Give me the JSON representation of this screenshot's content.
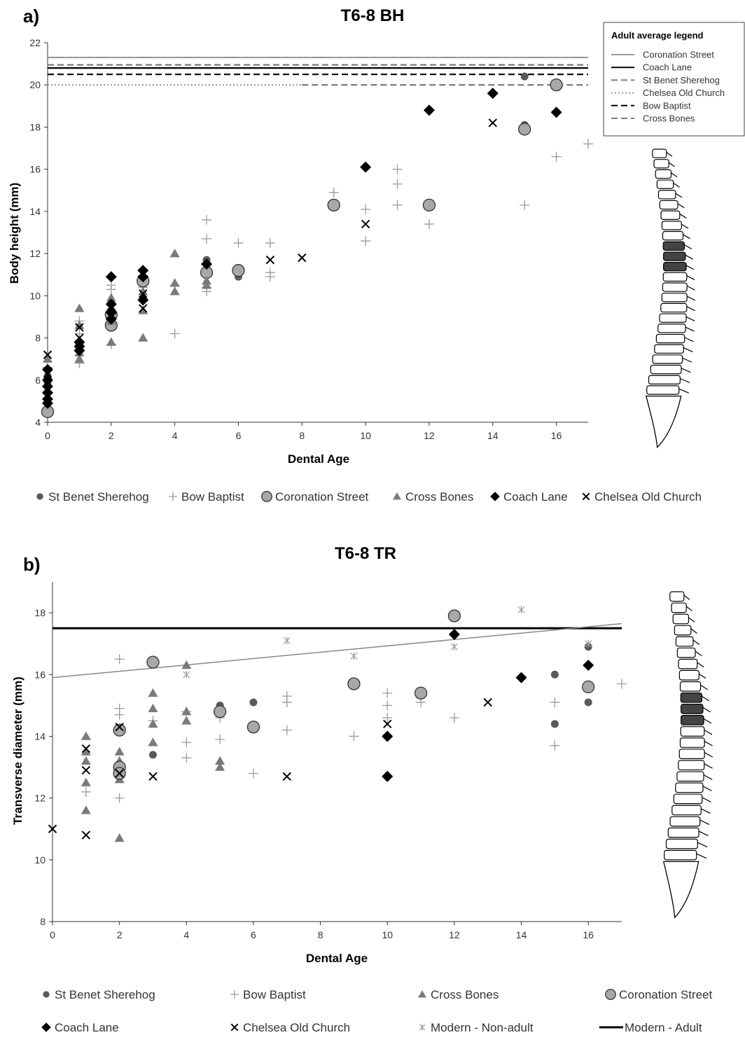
{
  "chart_data": [
    {
      "panel_label": "a)",
      "type": "scatter",
      "title": "T6-8 BH",
      "xlabel": "Dental Age",
      "ylabel": "Body height (mm)",
      "xlim": [
        0,
        17
      ],
      "ylim": [
        4,
        22
      ],
      "xticks": [
        0,
        2,
        4,
        6,
        8,
        10,
        12,
        14,
        16
      ],
      "yticks": [
        4,
        6,
        8,
        10,
        12,
        14,
        16,
        18,
        20,
        22
      ],
      "legend_position": "bottom",
      "series": [
        {
          "name": "St Benet Sherehog",
          "marker": "dot",
          "color": "#5a5a5a",
          "points": [
            [
              0,
              6.2
            ],
            [
              0,
              5.9
            ],
            [
              5,
              11.7
            ],
            [
              6,
              10.9
            ],
            [
              15,
              20.4
            ],
            [
              15,
              18.1
            ]
          ]
        },
        {
          "name": "Bow Baptist",
          "marker": "plus",
          "color": "#9a9a9a",
          "points": [
            [
              0,
              6.6
            ],
            [
              1,
              8.8
            ],
            [
              1,
              8.2
            ],
            [
              1,
              6.8
            ],
            [
              2,
              10.5
            ],
            [
              2,
              10.3
            ],
            [
              2,
              9.1
            ],
            [
              2,
              7.7
            ],
            [
              3,
              10.4
            ],
            [
              4,
              10.5
            ],
            [
              4,
              8.2
            ],
            [
              5,
              13.6
            ],
            [
              5,
              12.7
            ],
            [
              5,
              10.4
            ],
            [
              5,
              10.2
            ],
            [
              6,
              12.5
            ],
            [
              7,
              12.5
            ],
            [
              7,
              11.1
            ],
            [
              7,
              10.9
            ],
            [
              9,
              14.9
            ],
            [
              10,
              14.1
            ],
            [
              10,
              12.6
            ],
            [
              11,
              16.0
            ],
            [
              11,
              15.3
            ],
            [
              11,
              14.3
            ],
            [
              12,
              13.4
            ],
            [
              15,
              14.3
            ],
            [
              16,
              16.6
            ],
            [
              17,
              17.2
            ]
          ]
        },
        {
          "name": "Coronation Street",
          "marker": "circle",
          "color": "#a8a8a8",
          "points": [
            [
              0,
              4.5
            ],
            [
              2,
              8.6
            ],
            [
              2,
              9.1
            ],
            [
              3,
              10.7
            ],
            [
              5,
              11.1
            ],
            [
              6,
              11.2
            ],
            [
              9,
              14.3
            ],
            [
              12,
              14.3
            ],
            [
              15,
              17.9
            ],
            [
              16,
              20.0
            ]
          ]
        },
        {
          "name": "Cross Bones",
          "marker": "triangle",
          "color": "#7a7a7a",
          "points": [
            [
              0,
              7.0
            ],
            [
              1,
              9.4
            ],
            [
              1,
              8.6
            ],
            [
              1,
              7.3
            ],
            [
              1,
              7.0
            ],
            [
              2,
              9.9
            ],
            [
              2,
              8.8
            ],
            [
              2,
              7.8
            ],
            [
              3,
              10.2
            ],
            [
              3,
              9.3
            ],
            [
              3,
              8.0
            ],
            [
              4,
              12.0
            ],
            [
              4,
              10.6
            ],
            [
              4,
              10.2
            ],
            [
              5,
              10.7
            ],
            [
              5,
              10.5
            ]
          ]
        },
        {
          "name": "Coach Lane",
          "marker": "diamond",
          "color": "#000000",
          "points": [
            [
              0,
              6.5
            ],
            [
              0,
              6.0
            ],
            [
              0,
              5.7
            ],
            [
              0,
              5.4
            ],
            [
              0,
              5.1
            ],
            [
              0,
              4.9
            ],
            [
              1,
              7.8
            ],
            [
              1,
              7.6
            ],
            [
              1,
              7.4
            ],
            [
              2,
              10.9
            ],
            [
              2,
              9.6
            ],
            [
              2,
              9.2
            ],
            [
              2,
              8.9
            ],
            [
              3,
              11.2
            ],
            [
              3,
              10.9
            ],
            [
              3,
              9.8
            ],
            [
              5,
              11.5
            ],
            [
              10,
              16.1
            ],
            [
              12,
              18.8
            ],
            [
              14,
              19.6
            ],
            [
              16,
              18.7
            ]
          ]
        },
        {
          "name": "Chelsea Old Church",
          "marker": "x",
          "color": "#000000",
          "points": [
            [
              0,
              7.2
            ],
            [
              0,
              6.3
            ],
            [
              0,
              5.3
            ],
            [
              1,
              8.5
            ],
            [
              1,
              8.0
            ],
            [
              1,
              7.7
            ],
            [
              2,
              9.5
            ],
            [
              3,
              10.1
            ],
            [
              3,
              9.4
            ],
            [
              7,
              11.7
            ],
            [
              8,
              11.8
            ],
            [
              10,
              13.4
            ],
            [
              14,
              18.2
            ]
          ]
        }
      ],
      "reference_lines": [
        {
          "name": "Coronation Street",
          "y": 21.3,
          "style": "solid",
          "color": "#999999",
          "x_from": 0,
          "x_to": 17
        },
        {
          "name": "Coach Lane",
          "y": 20.8,
          "style": "solid",
          "color": "#000000",
          "x_from": 0,
          "x_to": 17
        },
        {
          "name": "St Benet Sherehog",
          "y": 20.95,
          "style": "dashed",
          "color": "#7a7a7a",
          "x_from": 0,
          "x_to": 17
        },
        {
          "name": "Chelsea Old Church",
          "y": 20.0,
          "style": "dotted",
          "color": "#9a9a9a",
          "x_from": 0,
          "x_to": 8
        },
        {
          "name": "Bow Baptist",
          "y": 20.5,
          "style": "dashed",
          "color": "#000000",
          "x_from": 0,
          "x_to": 17
        },
        {
          "name": "Cross Bones",
          "y": 20.0,
          "style": "dashed",
          "color": "#7a7a7a",
          "x_from": 8,
          "x_to": 17
        }
      ],
      "adult_legend": {
        "title": "Adult average legend",
        "entries": [
          "Coronation Street",
          "Coach Lane",
          "St Benet Sherehog",
          "Chelsea Old Church",
          "Bow Baptist",
          "Cross Bones"
        ]
      }
    },
    {
      "panel_label": "b)",
      "type": "scatter",
      "title": "T6-8 TR",
      "xlabel": "Dental Age",
      "ylabel": "Transverse diameter (mm)",
      "xlim": [
        0,
        17
      ],
      "ylim": [
        8,
        19
      ],
      "xticks": [
        0,
        2,
        4,
        6,
        8,
        10,
        12,
        14,
        16
      ],
      "yticks": [
        8,
        10,
        12,
        14,
        16,
        18
      ],
      "legend_position": "bottom",
      "series": [
        {
          "name": "St Benet Sherehog",
          "marker": "dot",
          "color": "#5a5a5a",
          "points": [
            [
              3,
              13.4
            ],
            [
              5,
              15.0
            ],
            [
              6,
              15.1
            ],
            [
              15,
              16.0
            ],
            [
              15,
              14.4
            ],
            [
              16,
              16.9
            ],
            [
              16,
              15.1
            ]
          ]
        },
        {
          "name": "Bow Baptist",
          "marker": "plus",
          "color": "#9a9a9a",
          "points": [
            [
              1,
              12.2
            ],
            [
              2,
              16.5
            ],
            [
              2,
              14.9
            ],
            [
              2,
              14.7
            ],
            [
              2,
              12.0
            ],
            [
              3,
              14.5
            ],
            [
              4,
              14.8
            ],
            [
              4,
              13.8
            ],
            [
              4,
              13.3
            ],
            [
              5,
              14.6
            ],
            [
              5,
              13.9
            ],
            [
              6,
              12.8
            ],
            [
              7,
              15.3
            ],
            [
              7,
              15.1
            ],
            [
              7,
              14.2
            ],
            [
              9,
              14.0
            ],
            [
              10,
              15.4
            ],
            [
              10,
              15.0
            ],
            [
              10,
              14.6
            ],
            [
              11,
              15.1
            ],
            [
              12,
              14.6
            ],
            [
              15,
              15.1
            ],
            [
              15,
              13.7
            ],
            [
              17,
              15.7
            ]
          ]
        },
        {
          "name": "Cross Bones",
          "marker": "triangle",
          "color": "#7a7a7a",
          "points": [
            [
              1,
              14.0
            ],
            [
              1,
              13.5
            ],
            [
              1,
              13.2
            ],
            [
              1,
              12.5
            ],
            [
              1,
              11.6
            ],
            [
              2,
              13.5
            ],
            [
              2,
              13.2
            ],
            [
              2,
              12.6
            ],
            [
              2,
              10.7
            ],
            [
              3,
              15.4
            ],
            [
              3,
              14.9
            ],
            [
              3,
              14.4
            ],
            [
              3,
              13.8
            ],
            [
              4,
              16.3
            ],
            [
              4,
              14.8
            ],
            [
              4,
              14.5
            ],
            [
              5,
              13.2
            ],
            [
              5,
              13.0
            ]
          ]
        },
        {
          "name": "Coronation Street",
          "marker": "circle",
          "color": "#a8a8a8",
          "points": [
            [
              2,
              14.2
            ],
            [
              2,
              13.0
            ],
            [
              2,
              12.8
            ],
            [
              3,
              16.4
            ],
            [
              5,
              14.8
            ],
            [
              6,
              14.3
            ],
            [
              9,
              15.7
            ],
            [
              11,
              15.4
            ],
            [
              12,
              17.9
            ],
            [
              16,
              15.6
            ]
          ]
        },
        {
          "name": "Coach Lane",
          "marker": "diamond",
          "color": "#000000",
          "points": [
            [
              10,
              14.0
            ],
            [
              10,
              12.7
            ],
            [
              12,
              17.3
            ],
            [
              14,
              15.9
            ],
            [
              16,
              16.3
            ]
          ]
        },
        {
          "name": "Chelsea Old Church",
          "marker": "x",
          "color": "#000000",
          "points": [
            [
              0,
              11.0
            ],
            [
              1,
              13.6
            ],
            [
              1,
              12.9
            ],
            [
              1,
              10.8
            ],
            [
              2,
              14.3
            ],
            [
              2,
              12.8
            ],
            [
              3,
              12.7
            ],
            [
              7,
              12.7
            ],
            [
              10,
              14.4
            ],
            [
              13,
              15.1
            ]
          ]
        },
        {
          "name": "Modern - Non-adult",
          "marker": "star",
          "color": "#a0a0a0",
          "points": [
            [
              4,
              16.0
            ],
            [
              7,
              17.1
            ],
            [
              9,
              16.6
            ],
            [
              12,
              16.9
            ],
            [
              14,
              18.1
            ],
            [
              16,
              17.0
            ]
          ]
        }
      ],
      "reference_lines": [
        {
          "name": "Modern - Adult",
          "y": 17.5,
          "style": "solid",
          "color": "#000000",
          "x_from": 0,
          "x_to": 17
        },
        {
          "name": "trend",
          "y_start": 15.9,
          "y_end": 17.65,
          "style": "solid",
          "color": "#888888",
          "x_from": 0,
          "x_to": 17
        }
      ]
    }
  ]
}
